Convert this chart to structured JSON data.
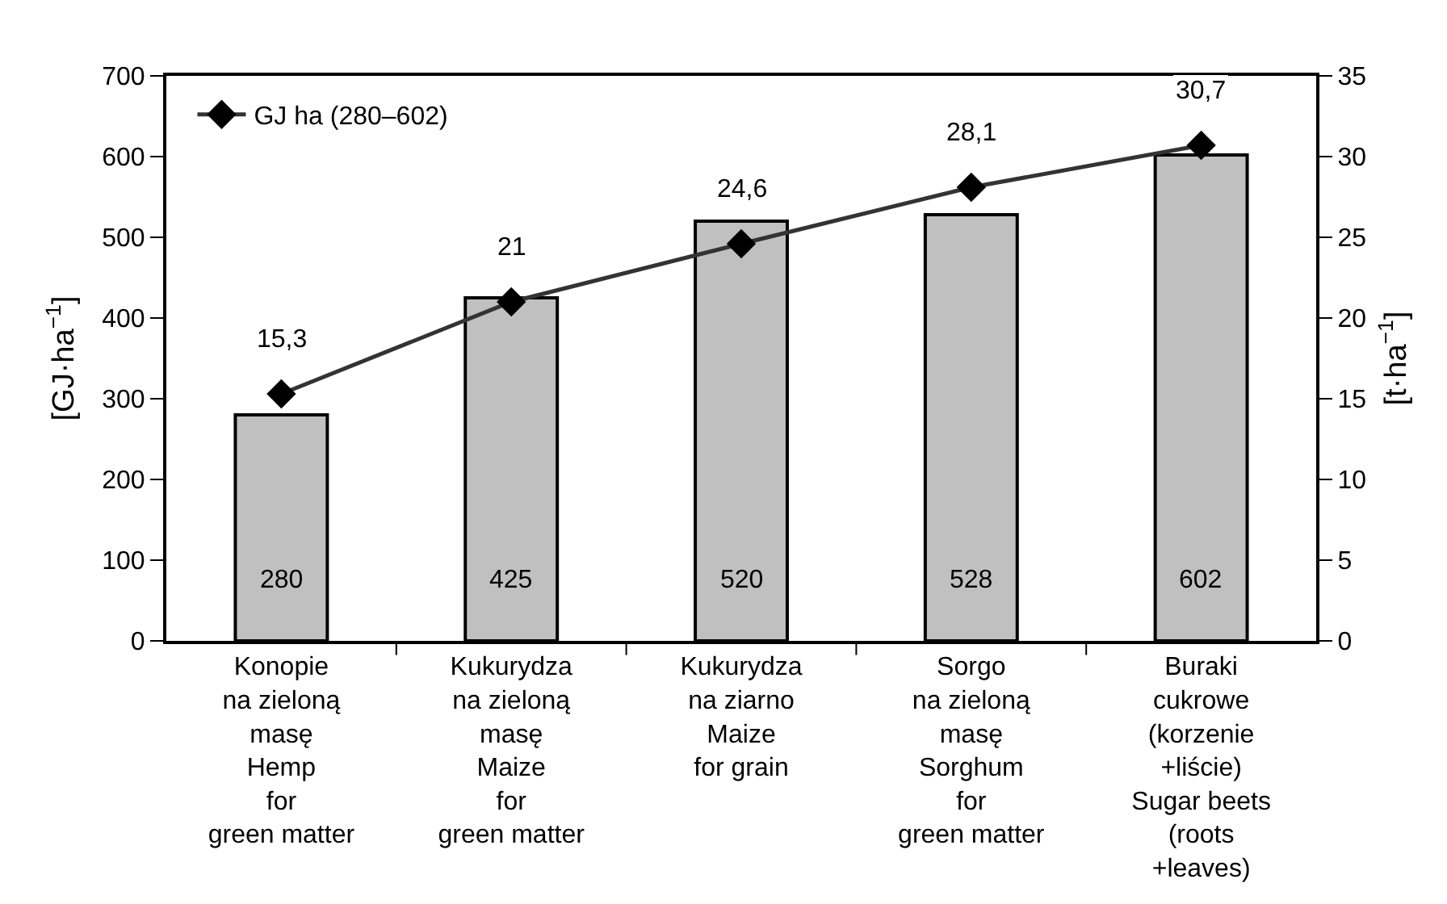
{
  "chart_data": {
    "type": "bar",
    "categories": [
      "Konopie\nna zieloną\nmasę\nHemp\nfor\ngreen matter",
      "Kukurydza\nna zieloną\nmasę\nMaize\nfor\ngreen matter",
      "Kukurydza\nna ziarno\nMaize\nfor grain",
      "Sorgo\nna zieloną\nmasę\nSorghum\nfor\ngreen matter",
      "Buraki\ncukrowe\n(korzenie\n+liście)\nSugar beets\n(roots\n+leaves)"
    ],
    "ylabel": "[GJ·ha$^{−1}$]",
    "y2label": "[t·ha$^{−1}$]",
    "ylim": [
      0,
      700
    ],
    "yticks": [
      0,
      100,
      200,
      300,
      400,
      500,
      600,
      700
    ],
    "y2lim": [
      0,
      35
    ],
    "y2ticks": [
      0,
      5,
      10,
      15,
      20,
      25,
      30,
      35
    ],
    "series": [
      {
        "color": "#c0c0c0",
        "values": [
          280,
          425,
          520,
          528,
          602
        ],
        "value_labels": [
          "280",
          "425",
          "520",
          "528",
          "602"
        ]
      },
      {
        "type": "line",
        "axis": "y2",
        "name": "GJ ha (280–602)",
        "color": "#333333",
        "marker": "diamond",
        "line_style": "solid",
        "values": [
          15.3,
          21,
          24.6,
          28.1,
          30.7
        ],
        "value_labels": [
          "15,3",
          "21",
          "24,6",
          "28,1",
          "30,7"
        ]
      }
    ],
    "legend": "top left",
    "grid": false
  }
}
